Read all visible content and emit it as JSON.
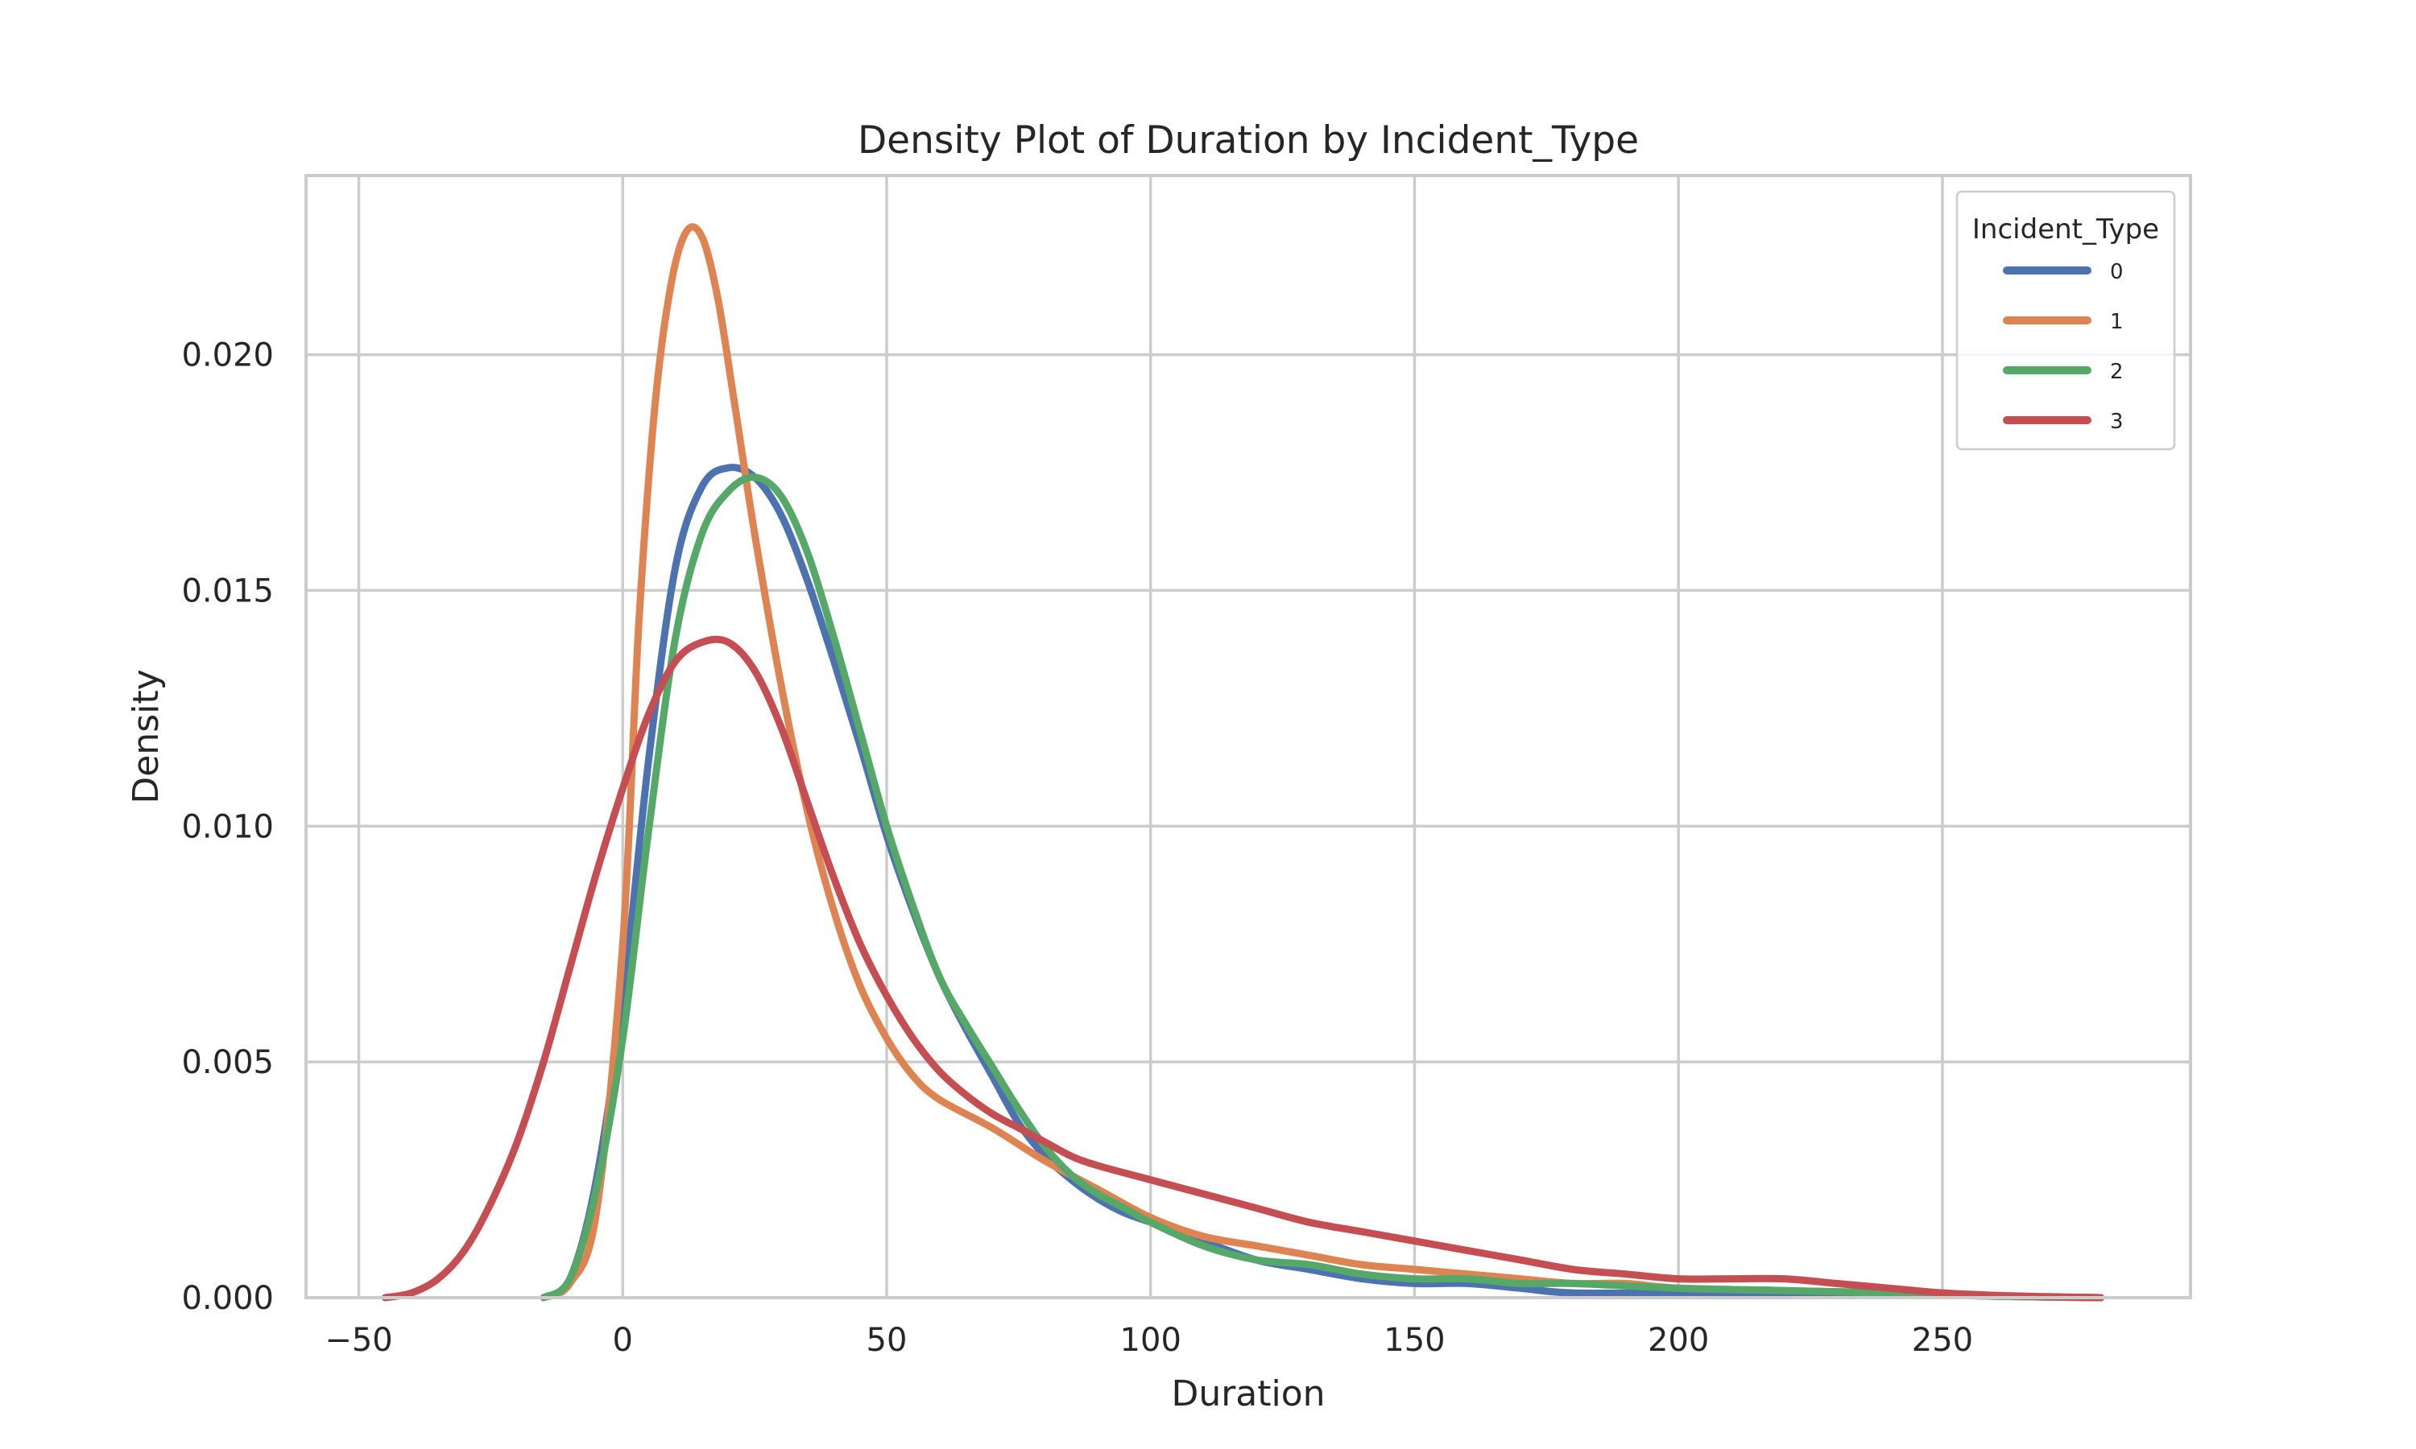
{
  "chart_data": {
    "type": "line",
    "title": "Density Plot of Duration by Incident_Type",
    "xlabel": "Duration",
    "ylabel": "Density",
    "xlim": [
      -60,
      297
    ],
    "ylim": [
      0,
      0.0238
    ],
    "x_ticks": [
      -50,
      0,
      50,
      100,
      150,
      200,
      250
    ],
    "x_tick_labels": [
      "−50",
      "0",
      "50",
      "100",
      "150",
      "200",
      "250"
    ],
    "y_ticks": [
      0,
      0.005,
      0.01,
      0.015,
      0.02
    ],
    "y_tick_labels": [
      "0.000",
      "0.005",
      "0.010",
      "0.015",
      "0.020"
    ],
    "grid": true,
    "legend": {
      "title": "Incident_Type",
      "placement": "top-right"
    },
    "series": [
      {
        "name": "0",
        "color": "#4c72b0",
        "points": [
          [
            -15,
            0
          ],
          [
            -10,
            0.0004
          ],
          [
            -5,
            0.0025
          ],
          [
            0,
            0.0063
          ],
          [
            5,
            0.0115
          ],
          [
            10,
            0.0155
          ],
          [
            15,
            0.0172
          ],
          [
            20,
            0.0176
          ],
          [
            25,
            0.0174
          ],
          [
            30,
            0.0166
          ],
          [
            35,
            0.0152
          ],
          [
            40,
            0.0135
          ],
          [
            45,
            0.0117
          ],
          [
            50,
            0.0098
          ],
          [
            55,
            0.0082
          ],
          [
            60,
            0.0068
          ],
          [
            65,
            0.0057
          ],
          [
            70,
            0.0047
          ],
          [
            75,
            0.0037
          ],
          [
            80,
            0.003
          ],
          [
            85,
            0.0025
          ],
          [
            90,
            0.0021
          ],
          [
            95,
            0.0018
          ],
          [
            100,
            0.0016
          ],
          [
            110,
            0.0012
          ],
          [
            120,
            0.0008
          ],
          [
            130,
            0.0006
          ],
          [
            140,
            0.0004
          ],
          [
            150,
            0.0003
          ],
          [
            160,
            0.0003
          ],
          [
            170,
            0.0002
          ],
          [
            180,
            0.0001
          ],
          [
            200,
            0.0001
          ],
          [
            220,
            0.0001
          ],
          [
            240,
            8e-05
          ],
          [
            260,
            3e-05
          ],
          [
            280,
            0.0
          ]
        ]
      },
      {
        "name": "1",
        "color": "#dd8452",
        "points": [
          [
            -15,
            0
          ],
          [
            -10,
            0.0003
          ],
          [
            -5,
            0.0018
          ],
          [
            0,
            0.0075
          ],
          [
            3,
            0.0142
          ],
          [
            6,
            0.0188
          ],
          [
            9,
            0.0214
          ],
          [
            12,
            0.0226
          ],
          [
            15,
            0.0225
          ],
          [
            18,
            0.0212
          ],
          [
            21,
            0.0191
          ],
          [
            25,
            0.0162
          ],
          [
            30,
            0.013
          ],
          [
            35,
            0.0103
          ],
          [
            40,
            0.0082
          ],
          [
            45,
            0.0066
          ],
          [
            50,
            0.0055
          ],
          [
            55,
            0.0047
          ],
          [
            60,
            0.0042
          ],
          [
            70,
            0.0036
          ],
          [
            80,
            0.0029
          ],
          [
            90,
            0.0023
          ],
          [
            100,
            0.0017
          ],
          [
            110,
            0.0013
          ],
          [
            120,
            0.0011
          ],
          [
            130,
            0.0009
          ],
          [
            140,
            0.0007
          ],
          [
            150,
            0.0006
          ],
          [
            160,
            0.0005
          ],
          [
            170,
            0.0004
          ],
          [
            180,
            0.0003
          ],
          [
            190,
            0.0003
          ],
          [
            200,
            0.0002
          ],
          [
            220,
            0.00015
          ],
          [
            240,
            0.0001
          ],
          [
            260,
            3e-05
          ],
          [
            280,
            0.0
          ]
        ]
      },
      {
        "name": "2",
        "color": "#55a868",
        "points": [
          [
            -15,
            0
          ],
          [
            -10,
            0.0004
          ],
          [
            -5,
            0.0023
          ],
          [
            0,
            0.0055
          ],
          [
            5,
            0.01
          ],
          [
            10,
            0.014
          ],
          [
            15,
            0.0162
          ],
          [
            20,
            0.0171
          ],
          [
            25,
            0.0174
          ],
          [
            30,
            0.017
          ],
          [
            35,
            0.0158
          ],
          [
            40,
            0.014
          ],
          [
            45,
            0.012
          ],
          [
            50,
            0.01
          ],
          [
            55,
            0.0083
          ],
          [
            60,
            0.0068
          ],
          [
            65,
            0.0058
          ],
          [
            70,
            0.0049
          ],
          [
            75,
            0.004
          ],
          [
            80,
            0.0032
          ],
          [
            85,
            0.0026
          ],
          [
            90,
            0.0022
          ],
          [
            95,
            0.0019
          ],
          [
            100,
            0.0016
          ],
          [
            110,
            0.0011
          ],
          [
            120,
            0.0008
          ],
          [
            130,
            0.0007
          ],
          [
            140,
            0.0005
          ],
          [
            150,
            0.0004
          ],
          [
            160,
            0.0004
          ],
          [
            170,
            0.0003
          ],
          [
            180,
            0.0003
          ],
          [
            200,
            0.0002
          ],
          [
            220,
            0.00015
          ],
          [
            240,
            0.0001
          ],
          [
            260,
            3e-05
          ],
          [
            280,
            0.0
          ]
        ]
      },
      {
        "name": "3",
        "color": "#c44e52",
        "points": [
          [
            -45,
            0
          ],
          [
            -40,
            0.0001
          ],
          [
            -35,
            0.0004
          ],
          [
            -30,
            0.001
          ],
          [
            -25,
            0.002
          ],
          [
            -20,
            0.0033
          ],
          [
            -15,
            0.005
          ],
          [
            -10,
            0.007
          ],
          [
            -5,
            0.009
          ],
          [
            0,
            0.0108
          ],
          [
            5,
            0.0124
          ],
          [
            10,
            0.0135
          ],
          [
            15,
            0.0139
          ],
          [
            20,
            0.0139
          ],
          [
            25,
            0.0133
          ],
          [
            30,
            0.0121
          ],
          [
            35,
            0.0105
          ],
          [
            40,
            0.0089
          ],
          [
            45,
            0.0075
          ],
          [
            50,
            0.0064
          ],
          [
            55,
            0.0055
          ],
          [
            60,
            0.0048
          ],
          [
            65,
            0.0043
          ],
          [
            70,
            0.0039
          ],
          [
            75,
            0.0036
          ],
          [
            80,
            0.0033
          ],
          [
            85,
            0.003
          ],
          [
            90,
            0.0028
          ],
          [
            100,
            0.0025
          ],
          [
            110,
            0.0022
          ],
          [
            120,
            0.0019
          ],
          [
            130,
            0.0016
          ],
          [
            140,
            0.0014
          ],
          [
            150,
            0.0012
          ],
          [
            160,
            0.001
          ],
          [
            170,
            0.0008
          ],
          [
            180,
            0.0006
          ],
          [
            190,
            0.0005
          ],
          [
            200,
            0.0004
          ],
          [
            210,
            0.0004
          ],
          [
            220,
            0.0004
          ],
          [
            230,
            0.0003
          ],
          [
            240,
            0.0002
          ],
          [
            250,
            0.0001
          ],
          [
            260,
            5e-05
          ],
          [
            270,
            2e-05
          ],
          [
            280,
            0.0
          ]
        ]
      }
    ]
  }
}
